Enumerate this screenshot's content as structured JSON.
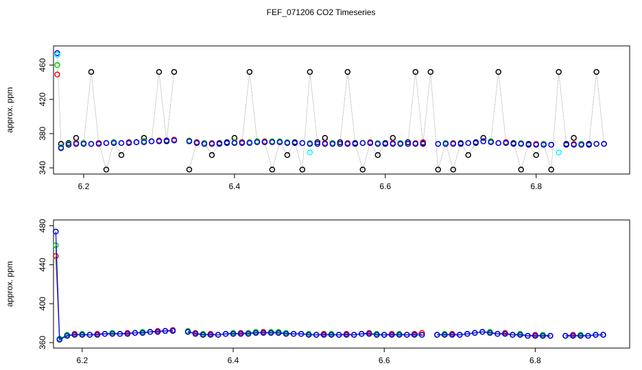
{
  "title": "FEF_071206  CO2 Timeseries",
  "chart_data": [
    {
      "type": "scatter",
      "y_label": "approx. ppm",
      "connect": "dotted",
      "xlim": [
        6.16,
        6.924
      ],
      "ylim": [
        332.8,
        482.4
      ],
      "xticks": [
        6.2,
        6.4,
        6.6,
        6.8
      ],
      "yticks": [
        340,
        380,
        420,
        460
      ],
      "x": [
        6.165,
        6.17,
        6.18,
        6.19,
        6.2,
        6.21,
        6.22,
        6.23,
        6.24,
        6.25,
        6.26,
        6.27,
        6.28,
        6.29,
        6.3,
        6.31,
        6.32,
        6.33,
        6.34,
        6.35,
        6.36,
        6.37,
        6.38,
        6.39,
        6.4,
        6.41,
        6.42,
        6.43,
        6.44,
        6.45,
        6.46,
        6.47,
        6.48,
        6.49,
        6.5,
        6.51,
        6.52,
        6.53,
        6.54,
        6.55,
        6.56,
        6.57,
        6.58,
        6.59,
        6.6,
        6.61,
        6.62,
        6.63,
        6.64,
        6.65,
        6.66,
        6.67,
        6.68,
        6.69,
        6.7,
        6.71,
        6.72,
        6.73,
        6.74,
        6.75,
        6.76,
        6.77,
        6.78,
        6.79,
        6.8,
        6.81,
        6.82,
        6.83,
        6.84,
        6.85,
        6.86,
        6.87,
        6.88,
        6.89
      ],
      "series": [
        {
          "name": "black",
          "color": "#000000",
          "values": [
            472,
            368,
            369,
            375,
            369,
            452,
            369,
            338,
            370,
            355,
            370,
            370,
            375,
            371,
            452,
            371,
            452,
            null,
            338,
            370,
            369,
            355,
            369,
            370,
            375,
            370,
            452,
            371,
            370,
            338,
            370,
            355,
            370,
            338,
            452,
            370,
            375,
            369,
            370,
            452,
            369,
            338,
            369,
            355,
            369,
            375,
            369,
            370,
            452,
            369,
            452,
            338,
            369,
            338,
            369,
            355,
            369,
            375,
            371,
            452,
            370,
            369,
            338,
            368,
            355,
            368,
            338,
            452,
            368,
            375,
            368,
            368,
            452,
            368
          ]
        },
        {
          "name": "red",
          "color": "#ff0000",
          "values": [
            449,
            364,
            367,
            369,
            368,
            368,
            369,
            369,
            369,
            369,
            370,
            370,
            370,
            371,
            372,
            372,
            373,
            null,
            371,
            370,
            368,
            369,
            368,
            369,
            369,
            370,
            370,
            370,
            371,
            370,
            370,
            369,
            369,
            369,
            368,
            368,
            369,
            368,
            368,
            369,
            368,
            369,
            370,
            368,
            368,
            369,
            368,
            368,
            369,
            370,
            null,
            368,
            368,
            369,
            368,
            369,
            370,
            371,
            370,
            369,
            370,
            368,
            368,
            367,
            368,
            367,
            367,
            null,
            367,
            368,
            367,
            367,
            368,
            368
          ]
        },
        {
          "name": "green",
          "color": "#00cd00",
          "values": [
            460,
            364,
            368,
            368,
            369,
            368,
            368,
            369,
            370,
            369,
            369,
            370,
            371,
            371,
            371,
            372,
            372,
            null,
            372,
            369,
            369,
            368,
            368,
            369,
            370,
            369,
            370,
            371,
            370,
            371,
            371,
            370,
            369,
            369,
            369,
            368,
            368,
            369,
            368,
            368,
            368,
            369,
            369,
            369,
            368,
            368,
            369,
            368,
            368,
            368,
            null,
            368,
            369,
            368,
            368,
            369,
            370,
            371,
            371,
            369,
            369,
            368,
            369,
            367,
            367,
            368,
            367,
            null,
            367,
            367,
            368,
            367,
            368,
            368
          ]
        },
        {
          "name": "blue",
          "color": "#0000ff",
          "values": [
            474,
            363,
            367,
            368,
            368,
            368,
            368,
            369,
            369,
            369,
            369,
            370,
            370,
            371,
            371,
            372,
            372,
            null,
            371,
            369,
            368,
            368,
            368,
            369,
            369,
            369,
            369,
            370,
            370,
            370,
            370,
            369,
            369,
            369,
            368,
            368,
            368,
            368,
            368,
            368,
            368,
            369,
            369,
            368,
            368,
            368,
            368,
            368,
            368,
            368,
            null,
            368,
            368,
            368,
            368,
            369,
            370,
            371,
            370,
            369,
            369,
            368,
            368,
            367,
            367,
            367,
            367,
            null,
            367,
            367,
            367,
            367,
            368,
            368
          ]
        },
        {
          "name": "cyan",
          "color": "#00ffff",
          "values": [
            472,
            null,
            null,
            null,
            null,
            null,
            null,
            null,
            null,
            null,
            null,
            null,
            null,
            null,
            null,
            null,
            null,
            null,
            null,
            null,
            null,
            null,
            null,
            null,
            null,
            null,
            null,
            null,
            null,
            null,
            null,
            null,
            null,
            null,
            358,
            null,
            null,
            null,
            null,
            null,
            null,
            null,
            null,
            null,
            null,
            null,
            null,
            null,
            null,
            null,
            null,
            null,
            null,
            null,
            null,
            null,
            null,
            null,
            null,
            null,
            null,
            null,
            null,
            null,
            null,
            null,
            null,
            358,
            null,
            null,
            null,
            null,
            null,
            null
          ]
        }
      ]
    },
    {
      "type": "line",
      "y_label": "approx. ppm",
      "xlim": [
        6.162,
        6.925
      ],
      "ylim": [
        354.4,
        486
      ],
      "xticks": [
        6.2,
        6.4,
        6.6,
        6.8
      ],
      "yticks": [
        360,
        400,
        440,
        480
      ],
      "x": [
        6.165,
        6.17,
        6.18,
        6.19,
        6.2,
        6.21,
        6.22,
        6.23,
        6.24,
        6.25,
        6.26,
        6.27,
        6.28,
        6.29,
        6.3,
        6.31,
        6.32,
        6.33,
        6.34,
        6.35,
        6.36,
        6.37,
        6.38,
        6.39,
        6.4,
        6.41,
        6.42,
        6.43,
        6.44,
        6.45,
        6.46,
        6.47,
        6.48,
        6.49,
        6.5,
        6.51,
        6.52,
        6.53,
        6.54,
        6.55,
        6.56,
        6.57,
        6.58,
        6.59,
        6.6,
        6.61,
        6.62,
        6.63,
        6.64,
        6.65,
        6.66,
        6.67,
        6.68,
        6.69,
        6.7,
        6.71,
        6.72,
        6.73,
        6.74,
        6.75,
        6.76,
        6.77,
        6.78,
        6.79,
        6.8,
        6.81,
        6.82,
        6.83,
        6.84,
        6.85,
        6.86,
        6.87,
        6.88,
        6.89
      ],
      "series": [
        {
          "name": "red",
          "color": "#ff0000",
          "values": [
            449,
            364,
            367,
            369,
            368,
            368,
            369,
            369,
            369,
            369,
            370,
            370,
            370,
            371,
            372,
            372,
            373,
            null,
            371,
            370,
            368,
            369,
            368,
            369,
            369,
            370,
            370,
            370,
            371,
            370,
            370,
            369,
            369,
            369,
            368,
            368,
            369,
            368,
            368,
            369,
            368,
            369,
            370,
            368,
            368,
            369,
            368,
            368,
            369,
            370,
            null,
            368,
            368,
            369,
            368,
            369,
            370,
            371,
            370,
            369,
            370,
            368,
            368,
            367,
            368,
            367,
            367,
            null,
            367,
            368,
            367,
            367,
            368,
            368
          ]
        },
        {
          "name": "green",
          "color": "#00cd00",
          "values": [
            460,
            364,
            368,
            368,
            369,
            368,
            368,
            369,
            370,
            369,
            369,
            370,
            371,
            371,
            371,
            372,
            372,
            null,
            372,
            369,
            369,
            368,
            368,
            369,
            370,
            369,
            370,
            371,
            370,
            371,
            371,
            370,
            369,
            369,
            369,
            368,
            368,
            369,
            368,
            368,
            368,
            369,
            369,
            369,
            368,
            368,
            369,
            368,
            368,
            368,
            null,
            368,
            369,
            368,
            368,
            369,
            370,
            371,
            371,
            369,
            369,
            368,
            369,
            367,
            367,
            368,
            367,
            null,
            367,
            367,
            368,
            367,
            368,
            368
          ]
        },
        {
          "name": "blue",
          "color": "#0000ff",
          "values": [
            474,
            363,
            367,
            368,
            368,
            368,
            368,
            369,
            369,
            369,
            369,
            370,
            370,
            371,
            371,
            372,
            372,
            null,
            371,
            369,
            368,
            368,
            368,
            369,
            369,
            369,
            369,
            370,
            370,
            370,
            370,
            369,
            369,
            369,
            368,
            368,
            368,
            368,
            368,
            368,
            368,
            369,
            369,
            368,
            368,
            368,
            368,
            368,
            368,
            368,
            null,
            368,
            368,
            368,
            368,
            369,
            370,
            371,
            370,
            369,
            369,
            368,
            368,
            367,
            367,
            367,
            367,
            null,
            367,
            367,
            367,
            367,
            368,
            368
          ]
        }
      ]
    }
  ]
}
